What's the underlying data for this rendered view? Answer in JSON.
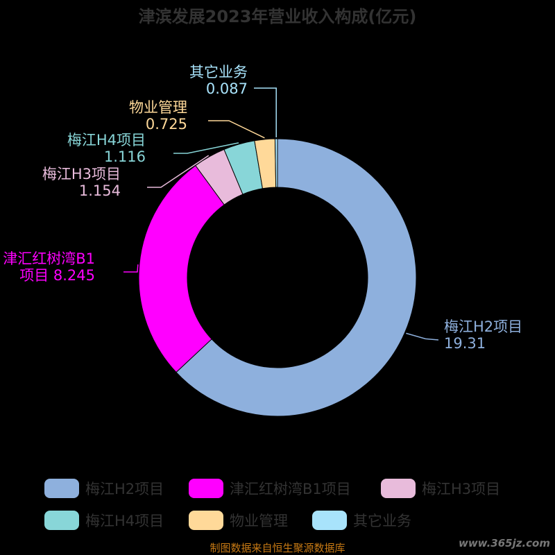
{
  "chart_data": {
    "type": "pie",
    "title": "津滨发展2023年营业收入构成(亿元)",
    "donut": true,
    "categories": [
      "梅江H2项目",
      "津汇红树湾B1项目",
      "梅江H3项目",
      "梅江H4项目",
      "物业管理",
      "其它业务"
    ],
    "values": [
      19.31,
      8.245,
      1.154,
      1.116,
      0.725,
      0.087
    ],
    "value_labels": [
      "19.31",
      "8.245",
      "1.154",
      "1.116",
      "0.725",
      "0.087"
    ],
    "slice_label_lines": [
      [
        "梅江H2项目",
        "19.31"
      ],
      [
        "津汇红树湾B1",
        "项目 8.245"
      ],
      [
        "梅江H3项目",
        "1.154"
      ],
      [
        "梅江H4项目",
        "1.116"
      ],
      [
        "物业管理",
        "0.725"
      ],
      [
        "其它业务",
        "0.087"
      ]
    ],
    "colors": [
      "#8eb0dd",
      "#ff00ff",
      "#e8bbdb",
      "#88d6d8",
      "#ffd999",
      "#a8e3fb"
    ],
    "legend_position": "bottom",
    "title_color": "#333333",
    "background": "#000000"
  },
  "footer": {
    "source_text": "制图数据来自恒生聚源数据库",
    "source_color": "#c87a14",
    "watermark_text": "www.365jz.com"
  }
}
